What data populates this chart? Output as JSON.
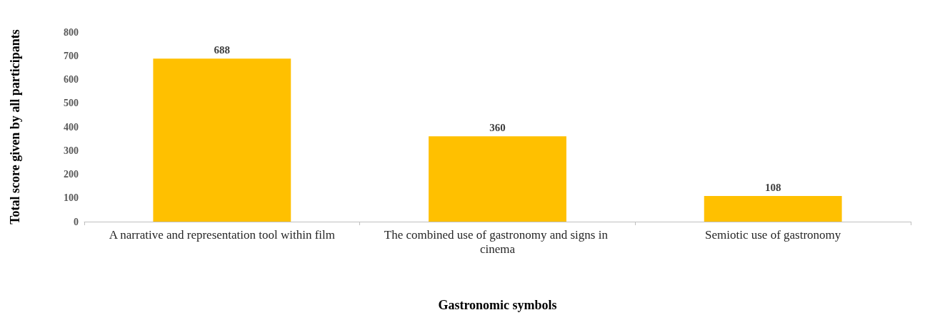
{
  "chart_data": {
    "type": "bar",
    "xlabel": "Gastronomic symbols",
    "ylabel": "Total score given by all participants",
    "categories": [
      "A narrative and representation tool within film",
      "The combined use of gastronomy and signs in cinema",
      "Semiotic use of gastronomy"
    ],
    "values": [
      688,
      360,
      108
    ],
    "color": "#ffc000",
    "ylim": [
      0,
      800
    ],
    "yticks": [
      0,
      100,
      200,
      300,
      400,
      500,
      600,
      700,
      800
    ],
    "grid": false,
    "data_labels": true
  }
}
